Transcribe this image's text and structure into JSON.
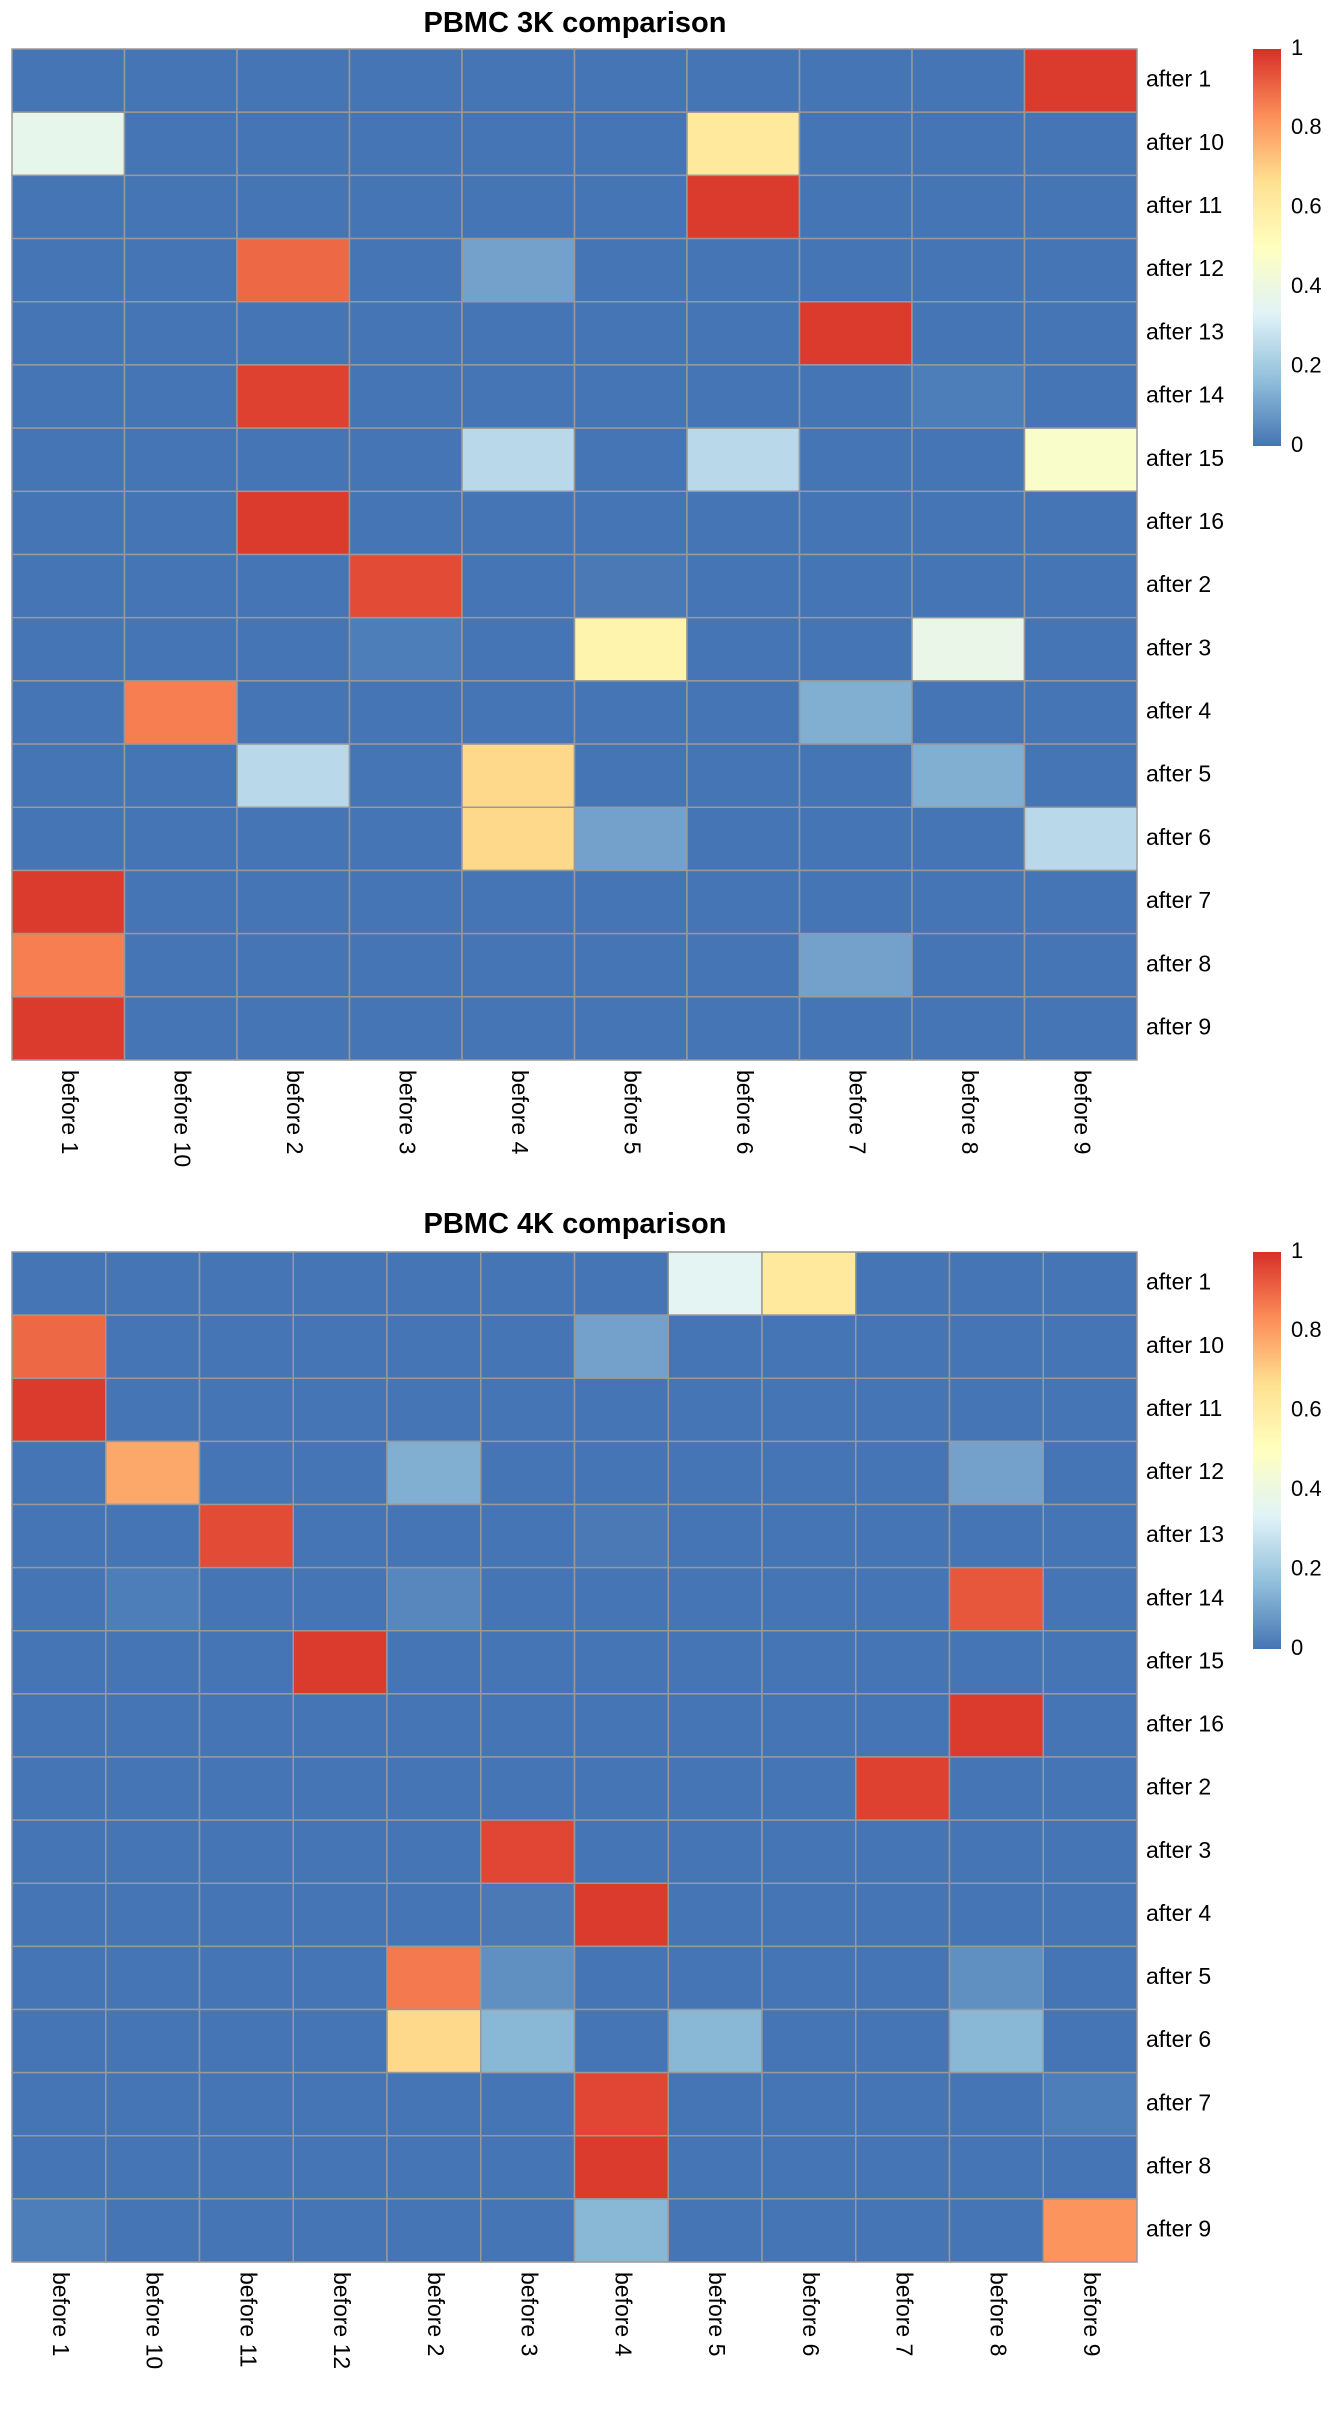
{
  "chart_data": [
    {
      "type": "heatmap",
      "title": "PBMC 3K comparison",
      "rows": [
        "after 1",
        "after 10",
        "after 11",
        "after 12",
        "after 13",
        "after 14",
        "after 15",
        "after 16",
        "after 2",
        "after 3",
        "after 4",
        "after 5",
        "after 6",
        "after 7",
        "after 8",
        "after 9"
      ],
      "columns": [
        "before 1",
        "before 10",
        "before 2",
        "before 3",
        "before 4",
        "before 5",
        "before 6",
        "before 7",
        "before 8",
        "before 9"
      ],
      "values": [
        [
          0,
          0,
          0,
          0,
          0,
          0,
          0,
          0,
          0,
          0.98
        ],
        [
          0.37,
          0,
          0,
          0,
          0,
          0,
          0.62,
          0,
          0,
          0
        ],
        [
          0,
          0,
          0,
          0,
          0,
          0,
          0.98,
          0,
          0,
          0
        ],
        [
          0,
          0,
          0.9,
          0,
          0.1,
          0,
          0,
          0,
          0,
          0
        ],
        [
          0,
          0,
          0,
          0,
          0,
          0,
          0,
          0.98,
          0,
          0
        ],
        [
          0,
          0,
          0.97,
          0,
          0,
          0,
          0,
          0,
          0.02,
          0
        ],
        [
          0,
          0,
          0,
          0,
          0.25,
          0,
          0.25,
          0,
          0,
          0.47
        ],
        [
          0,
          0,
          0.98,
          0,
          0,
          0,
          0,
          0,
          0,
          0
        ],
        [
          0,
          0,
          0,
          0.95,
          0,
          0.01,
          0,
          0,
          0,
          0
        ],
        [
          0,
          0,
          0,
          0.02,
          0,
          0.56,
          0,
          0,
          0.38,
          0
        ],
        [
          0,
          0.86,
          0,
          0,
          0,
          0,
          0,
          0.13,
          0,
          0
        ],
        [
          0,
          0,
          0.25,
          0,
          0.68,
          0,
          0,
          0,
          0.13,
          0
        ],
        [
          0,
          0,
          0,
          0,
          0.68,
          0.1,
          0,
          0,
          0,
          0.25
        ],
        [
          0.98,
          0,
          0,
          0,
          0,
          0,
          0,
          0,
          0,
          0
        ],
        [
          0.86,
          0,
          0,
          0,
          0,
          0,
          0,
          0.1,
          0,
          0
        ],
        [
          0.98,
          0,
          0,
          0,
          0,
          0,
          0,
          0,
          0,
          0
        ]
      ],
      "legend": {
        "ticks": [
          "0",
          "0.2",
          "0.4",
          "0.6",
          "0.8",
          "1"
        ],
        "range": [
          0,
          1
        ],
        "placement": "right"
      },
      "palette": [
        "#4575B4",
        "#91BFDB",
        "#E0F3F8",
        "#FFFFBF",
        "#FEE090",
        "#FC8D59",
        "#D73027"
      ],
      "border_color": "#999999"
    },
    {
      "type": "heatmap",
      "title": "PBMC 4K comparison",
      "rows": [
        "after 1",
        "after 10",
        "after 11",
        "after 12",
        "after 13",
        "after 14",
        "after 15",
        "after 16",
        "after 2",
        "after 3",
        "after 4",
        "after 5",
        "after 6",
        "after 7",
        "after 8",
        "after 9"
      ],
      "columns": [
        "before 1",
        "before 10",
        "before 11",
        "before 12",
        "before 2",
        "before 3",
        "before 4",
        "before 5",
        "before 6",
        "before 7",
        "before 8",
        "before 9"
      ],
      "values": [
        [
          0,
          0,
          0,
          0,
          0,
          0,
          0,
          0.35,
          0.62,
          0,
          0,
          0
        ],
        [
          0.9,
          0,
          0,
          0,
          0,
          0,
          0.1,
          0,
          0,
          0,
          0,
          0
        ],
        [
          0.98,
          0,
          0,
          0,
          0,
          0,
          0,
          0,
          0,
          0,
          0,
          0
        ],
        [
          0,
          0.78,
          0,
          0,
          0.13,
          0,
          0,
          0,
          0,
          0,
          0.1,
          0
        ],
        [
          0,
          0,
          0.95,
          0,
          0,
          0,
          0.01,
          0,
          0,
          0,
          0,
          0
        ],
        [
          0,
          0.02,
          0,
          0,
          0.04,
          0,
          0,
          0,
          0,
          0,
          0.93,
          0
        ],
        [
          0,
          0,
          0,
          0.98,
          0,
          0,
          0,
          0,
          0,
          0,
          0,
          0
        ],
        [
          0,
          0,
          0,
          0,
          0,
          0,
          0,
          0,
          0,
          0,
          0.98,
          0
        ],
        [
          0,
          0,
          0,
          0,
          0,
          0,
          0,
          0,
          0,
          0.97,
          0,
          0
        ],
        [
          0,
          0,
          0,
          0,
          0,
          0.96,
          0,
          0,
          0,
          0,
          0,
          0
        ],
        [
          0,
          0,
          0,
          0,
          0,
          0.01,
          0.98,
          0,
          0,
          0,
          0,
          0
        ],
        [
          0,
          0,
          0,
          0,
          0.87,
          0.06,
          0,
          0,
          0,
          0,
          0.06,
          0
        ],
        [
          0,
          0,
          0,
          0,
          0.68,
          0.15,
          0,
          0.15,
          0,
          0,
          0.15,
          0
        ],
        [
          0,
          0,
          0,
          0,
          0,
          0,
          0.96,
          0,
          0,
          0,
          0,
          0.02
        ],
        [
          0,
          0,
          0,
          0,
          0,
          0,
          0.98,
          0,
          0,
          0,
          0,
          0
        ],
        [
          0.02,
          0,
          0,
          0,
          0,
          0,
          0.15,
          0,
          0,
          0,
          0,
          0.82
        ]
      ],
      "legend": {
        "ticks": [
          "0",
          "0.2",
          "0.4",
          "0.6",
          "0.8",
          "1"
        ],
        "range": [
          0,
          1
        ],
        "placement": "right"
      },
      "palette": [
        "#4575B4",
        "#91BFDB",
        "#E0F3F8",
        "#FFFFBF",
        "#FEE090",
        "#FC8D59",
        "#D73027"
      ],
      "border_color": "#999999"
    }
  ]
}
